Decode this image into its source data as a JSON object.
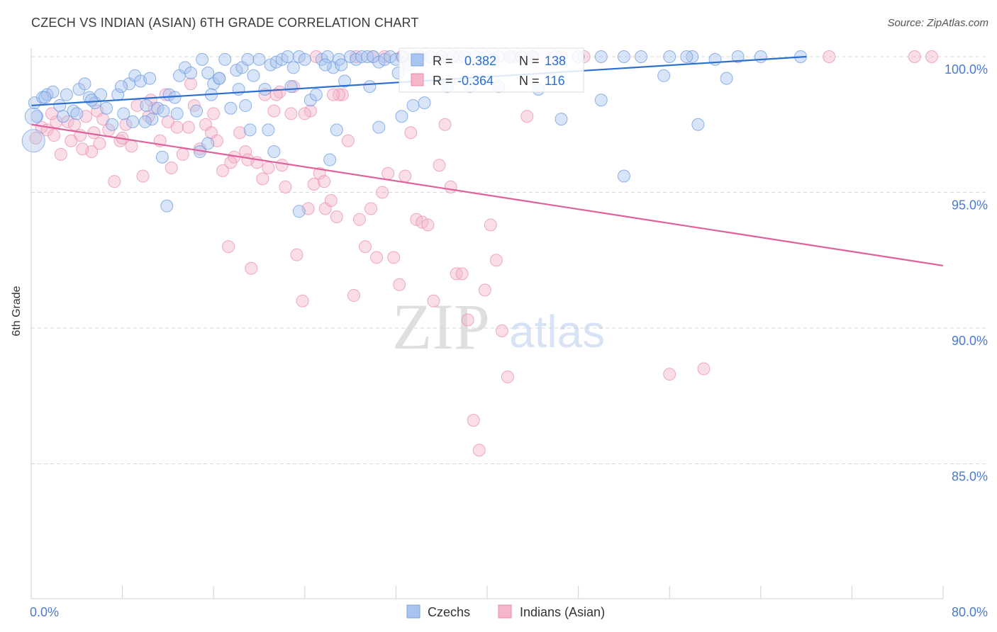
{
  "header": {
    "title": "CZECH VS INDIAN (ASIAN) 6TH GRADE CORRELATION CHART",
    "source": "Source: ZipAtlas.com"
  },
  "watermark": {
    "zip": "ZIP",
    "atlas": "atlas"
  },
  "legend_box": {
    "rows": [
      {
        "r_label": "R =",
        "r_value": " 0.382",
        "n_label": "N =",
        "n_value": "138",
        "color": "#a9c4ee"
      },
      {
        "r_label": "R =",
        "r_value": "-0.364",
        "n_label": "N =",
        "n_value": "116",
        "color": "#f5b6c9"
      }
    ]
  },
  "bottom_legend": [
    {
      "label": "Czechs",
      "color": "#a9c4ee"
    },
    {
      "label": "Indians (Asian)",
      "color": "#f5b6c9"
    }
  ],
  "colors": {
    "blue_line": "#2b6fd1",
    "pink_line": "#e0619a",
    "blue_fill": "#a9c4ee",
    "pink_fill": "#f5b6c9",
    "tick_text": "#4a7bd0",
    "grid": "#d8d8d8"
  },
  "chart_data": {
    "type": "scatter",
    "title": "CZECH VS INDIAN (ASIAN) 6TH GRADE CORRELATION CHART",
    "xlabel": "",
    "ylabel": "6th Grade",
    "xlim": [
      0,
      80
    ],
    "ylim": [
      80.0,
      101.8
    ],
    "x_tick_labels": [
      "0.0%",
      "80.0%"
    ],
    "y_ticks": [
      {
        "value": 100.0,
        "label": "100.0%"
      },
      {
        "value": 95.0,
        "label": "95.0%"
      },
      {
        "value": 90.0,
        "label": "90.0%"
      },
      {
        "value": 85.0,
        "label": "85.0%"
      }
    ],
    "grid": true,
    "legend_position": "top-center",
    "series": [
      {
        "name": "Czechs",
        "r": 0.382,
        "n": 138,
        "trend": {
          "x": [
            0,
            68
          ],
          "y": [
            98.2,
            100.0
          ]
        },
        "points": [
          [
            0.3,
            98.3
          ],
          [
            0.5,
            97.8
          ],
          [
            1.0,
            98.5
          ],
          [
            1.4,
            98.6
          ],
          [
            1.9,
            98.7
          ],
          [
            2.5,
            98.2
          ],
          [
            3.1,
            98.6
          ],
          [
            3.7,
            98.0
          ],
          [
            4.2,
            98.8
          ],
          [
            4.7,
            99.0
          ],
          [
            5.1,
            98.5
          ],
          [
            5.6,
            98.3
          ],
          [
            6.1,
            98.6
          ],
          [
            6.6,
            98.1
          ],
          [
            7.1,
            97.5
          ],
          [
            7.6,
            98.6
          ],
          [
            8.1,
            97.9
          ],
          [
            8.6,
            99.0
          ],
          [
            9.1,
            99.3
          ],
          [
            9.6,
            99.1
          ],
          [
            10.1,
            98.2
          ],
          [
            10.6,
            97.7
          ],
          [
            11.1,
            98.1
          ],
          [
            11.6,
            98.0
          ],
          [
            12.1,
            98.6
          ],
          [
            12.6,
            98.5
          ],
          [
            13.0,
            99.3
          ],
          [
            13.5,
            99.6
          ],
          [
            14.0,
            99.4
          ],
          [
            14.5,
            98.0
          ],
          [
            15.0,
            99.9
          ],
          [
            15.5,
            99.4
          ],
          [
            16.0,
            99.0
          ],
          [
            16.5,
            99.2
          ],
          [
            17.0,
            99.9
          ],
          [
            17.5,
            98.1
          ],
          [
            18.0,
            99.5
          ],
          [
            18.5,
            99.6
          ],
          [
            19.0,
            99.9
          ],
          [
            19.5,
            99.3
          ],
          [
            20.0,
            99.9
          ],
          [
            20.5,
            98.8
          ],
          [
            21.0,
            99.7
          ],
          [
            21.5,
            99.8
          ],
          [
            22.0,
            99.9
          ],
          [
            22.5,
            100.0
          ],
          [
            23.0,
            99.6
          ],
          [
            23.5,
            100.0
          ],
          [
            24.0,
            99.9
          ],
          [
            24.5,
            98.4
          ],
          [
            25.0,
            98.6
          ],
          [
            25.5,
            99.9
          ],
          [
            26.0,
            100.0
          ],
          [
            26.5,
            99.6
          ],
          [
            27.0,
            99.9
          ],
          [
            27.5,
            99.1
          ],
          [
            28.0,
            100.0
          ],
          [
            28.5,
            99.9
          ],
          [
            29.0,
            100.0
          ],
          [
            29.5,
            100.0
          ],
          [
            30.0,
            100.0
          ],
          [
            30.5,
            99.8
          ],
          [
            31.0,
            99.9
          ],
          [
            31.5,
            100.0
          ],
          [
            32.0,
            99.9
          ],
          [
            32.6,
            100.0
          ],
          [
            33.1,
            99.7
          ],
          [
            33.6,
            100.0
          ],
          [
            34.1,
            100.0
          ],
          [
            35.0,
            100.0
          ],
          [
            36.0,
            100.0
          ],
          [
            37.0,
            100.0
          ],
          [
            38.0,
            100.0
          ],
          [
            39.0,
            100.0
          ],
          [
            40.0,
            100.0
          ],
          [
            41.0,
            100.0
          ],
          [
            42.0,
            100.0
          ],
          [
            43.0,
            100.0
          ],
          [
            44.0,
            100.0
          ],
          [
            46.0,
            100.0
          ],
          [
            48.0,
            100.0
          ],
          [
            50.0,
            100.0
          ],
          [
            52.0,
            100.0
          ],
          [
            53.5,
            100.0
          ],
          [
            56.0,
            100.0
          ],
          [
            58.0,
            100.0
          ],
          [
            60.0,
            99.9
          ],
          [
            62.0,
            100.0
          ],
          [
            64.0,
            100.0
          ],
          [
            67.5,
            100.0
          ],
          [
            1.2,
            98.5
          ],
          [
            2.8,
            97.8
          ],
          [
            4.0,
            97.9
          ],
          [
            5.3,
            98.4
          ],
          [
            7.9,
            98.9
          ],
          [
            8.9,
            97.6
          ],
          [
            10.4,
            99.2
          ],
          [
            12.8,
            97.9
          ],
          [
            15.8,
            98.6
          ],
          [
            18.2,
            98.8
          ],
          [
            20.8,
            97.3
          ],
          [
            22.8,
            98.9
          ],
          [
            25.8,
            99.7
          ],
          [
            27.2,
            99.7
          ],
          [
            29.7,
            98.9
          ],
          [
            32.2,
            99.4
          ],
          [
            34.5,
            98.3
          ],
          [
            36.5,
            98.9
          ],
          [
            38.5,
            98.9
          ],
          [
            40.5,
            99.9
          ],
          [
            44.5,
            98.8
          ],
          [
            46.5,
            97.7
          ],
          [
            50.0,
            98.4
          ],
          [
            55.5,
            99.3
          ],
          [
            58.5,
            97.5
          ],
          [
            61.0,
            99.2
          ],
          [
            10.0,
            97.6
          ],
          [
            11.5,
            96.3
          ],
          [
            14.8,
            96.5
          ],
          [
            15.5,
            96.8
          ],
          [
            19.2,
            97.3
          ],
          [
            21.3,
            96.5
          ],
          [
            23.5,
            94.3
          ],
          [
            26.2,
            96.2
          ],
          [
            26.8,
            97.3
          ],
          [
            30.5,
            97.4
          ],
          [
            32.5,
            97.8
          ],
          [
            52.0,
            95.6
          ],
          [
            11.9,
            94.5
          ],
          [
            16.5,
            99.2
          ],
          [
            18.8,
            98.2
          ],
          [
            33.5,
            98.2
          ],
          [
            41.0,
            98.9
          ],
          [
            57.5,
            100.0
          ]
        ]
      },
      {
        "name": "Indians (Asian)",
        "r": -0.364,
        "n": 116,
        "trend": {
          "x": [
            0,
            80
          ],
          "y": [
            97.5,
            92.3
          ]
        },
        "points": [
          [
            0.4,
            97.0
          ],
          [
            0.9,
            97.4
          ],
          [
            1.4,
            97.3
          ],
          [
            2.0,
            97.1
          ],
          [
            2.6,
            96.4
          ],
          [
            3.2,
            97.6
          ],
          [
            3.8,
            97.5
          ],
          [
            4.3,
            97.1
          ],
          [
            4.8,
            97.8
          ],
          [
            5.3,
            96.5
          ],
          [
            5.8,
            98.0
          ],
          [
            6.3,
            97.7
          ],
          [
            6.8,
            97.3
          ],
          [
            7.3,
            95.4
          ],
          [
            7.8,
            96.9
          ],
          [
            8.3,
            97.5
          ],
          [
            8.8,
            96.7
          ],
          [
            9.3,
            98.2
          ],
          [
            9.8,
            95.6
          ],
          [
            10.3,
            97.8
          ],
          [
            10.8,
            98.1
          ],
          [
            11.3,
            96.9
          ],
          [
            11.8,
            98.6
          ],
          [
            12.3,
            95.9
          ],
          [
            12.8,
            97.4
          ],
          [
            13.3,
            96.4
          ],
          [
            13.8,
            97.4
          ],
          [
            14.3,
            98.2
          ],
          [
            14.8,
            96.6
          ],
          [
            15.3,
            97.5
          ],
          [
            15.8,
            97.2
          ],
          [
            16.3,
            96.9
          ],
          [
            16.8,
            95.8
          ],
          [
            17.3,
            93.0
          ],
          [
            17.8,
            96.3
          ],
          [
            18.3,
            97.2
          ],
          [
            18.8,
            96.5
          ],
          [
            19.3,
            92.2
          ],
          [
            19.8,
            96.1
          ],
          [
            20.3,
            95.5
          ],
          [
            20.8,
            95.9
          ],
          [
            21.3,
            98.0
          ],
          [
            21.8,
            98.7
          ],
          [
            22.3,
            95.2
          ],
          [
            22.8,
            97.9
          ],
          [
            23.3,
            92.7
          ],
          [
            23.8,
            91.0
          ],
          [
            24.3,
            94.4
          ],
          [
            24.8,
            95.3
          ],
          [
            25.3,
            95.7
          ],
          [
            25.8,
            94.4
          ],
          [
            26.3,
            94.7
          ],
          [
            26.8,
            94.1
          ],
          [
            27.3,
            98.6
          ],
          [
            27.8,
            96.9
          ],
          [
            28.3,
            91.2
          ],
          [
            28.8,
            94.0
          ],
          [
            29.3,
            93.0
          ],
          [
            29.8,
            94.4
          ],
          [
            30.3,
            92.6
          ],
          [
            30.8,
            95.0
          ],
          [
            31.3,
            95.7
          ],
          [
            31.8,
            92.6
          ],
          [
            32.3,
            91.6
          ],
          [
            32.8,
            95.6
          ],
          [
            33.3,
            97.2
          ],
          [
            33.8,
            94.0
          ],
          [
            34.3,
            93.9
          ],
          [
            34.8,
            93.8
          ],
          [
            35.3,
            91.0
          ],
          [
            35.8,
            96.0
          ],
          [
            36.3,
            97.5
          ],
          [
            36.8,
            95.2
          ],
          [
            37.3,
            92.0
          ],
          [
            37.8,
            92.0
          ],
          [
            38.3,
            90.3
          ],
          [
            38.8,
            86.6
          ],
          [
            39.3,
            85.5
          ],
          [
            39.8,
            91.4
          ],
          [
            40.3,
            93.8
          ],
          [
            40.8,
            92.5
          ],
          [
            41.3,
            89.9
          ],
          [
            41.8,
            88.2
          ],
          [
            42.3,
            100.0
          ],
          [
            43.5,
            97.8
          ],
          [
            44.0,
            100.0
          ],
          [
            56.0,
            88.3
          ],
          [
            59.0,
            88.5
          ],
          [
            70.0,
            100.0
          ],
          [
            77.5,
            100.0
          ],
          [
            79.0,
            100.0
          ],
          [
            45.0,
            100.0
          ],
          [
            46.5,
            100.0
          ],
          [
            48.5,
            100.0
          ],
          [
            23.0,
            98.9
          ],
          [
            25.0,
            100.0
          ],
          [
            27.0,
            98.6
          ],
          [
            28.5,
            100.0
          ],
          [
            30.0,
            100.0
          ],
          [
            31.0,
            100.0
          ],
          [
            32.5,
            100.0
          ],
          [
            34.0,
            100.0
          ],
          [
            36.0,
            100.0
          ],
          [
            37.5,
            100.0
          ],
          [
            20.5,
            98.6
          ],
          [
            21.5,
            98.6
          ],
          [
            24.5,
            98.0
          ],
          [
            26.5,
            98.6
          ],
          [
            8.0,
            97.0
          ],
          [
            10.5,
            98.4
          ],
          [
            12.0,
            97.6
          ],
          [
            14.0,
            99.0
          ],
          [
            16.0,
            97.9
          ],
          [
            17.5,
            96.1
          ],
          [
            19.0,
            96.2
          ],
          [
            22.0,
            96.0
          ],
          [
            24.0,
            97.9
          ],
          [
            25.7,
            95.4
          ],
          [
            4.5,
            96.6
          ],
          [
            6.0,
            96.8
          ],
          [
            2.2,
            97.6
          ],
          [
            3.5,
            96.9
          ],
          [
            1.8,
            97.9
          ],
          [
            5.5,
            97.2
          ]
        ]
      }
    ]
  }
}
